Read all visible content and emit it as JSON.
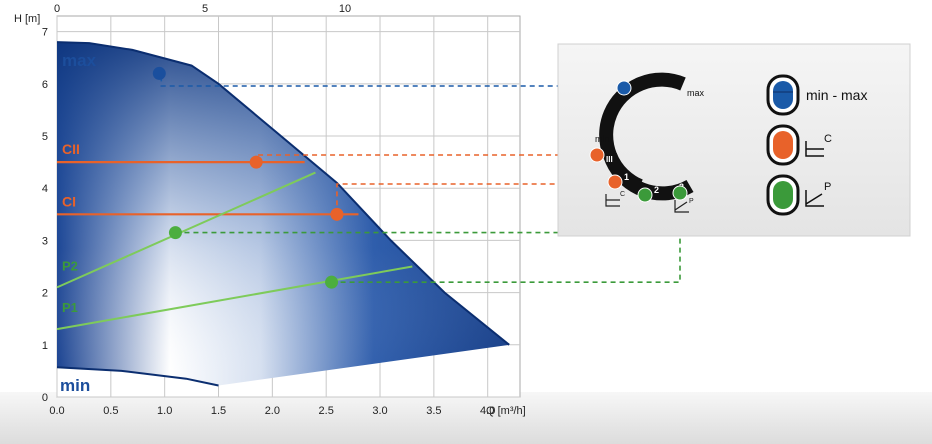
{
  "chart_data": {
    "type": "line",
    "xlabel": "Q [m³/h]",
    "ylabel": "H [m]",
    "xlim": [
      0,
      4.3
    ],
    "ylim": [
      0,
      7.3
    ],
    "x_ticks": [
      "0.0",
      "0.5",
      "1.0",
      "1.5",
      "2.0",
      "2.5",
      "3.0",
      "3.5",
      "4.0"
    ],
    "y_ticks": [
      "0",
      "1",
      "2",
      "3",
      "4",
      "5",
      "6",
      "7"
    ],
    "top_axis_label_ticks": [
      "0",
      "5",
      "10"
    ],
    "max_curve": {
      "name": "max",
      "points": [
        [
          0,
          6.8
        ],
        [
          0.3,
          6.78
        ],
        [
          0.7,
          6.65
        ],
        [
          1.25,
          6.35
        ],
        [
          1.5,
          6.0
        ],
        [
          2.6,
          4.1
        ],
        [
          3.1,
          3.0
        ],
        [
          3.6,
          2.0
        ],
        [
          4.2,
          1.0
        ]
      ],
      "color": "#0d3a86"
    },
    "min_curve": {
      "name": "min",
      "points": [
        [
          0,
          0.57
        ],
        [
          0.6,
          0.5
        ],
        [
          1.2,
          0.35
        ],
        [
          1.5,
          0.22
        ],
        [
          4.2,
          1.0
        ]
      ],
      "color": "#0d3a86"
    },
    "constant_pressure_lines": [
      {
        "name": "CII",
        "y": 4.5,
        "x_end": 2.3,
        "point_x": 1.85,
        "color": "#e8622a"
      },
      {
        "name": "CI",
        "y": 3.5,
        "x_end": 2.8,
        "point_x": 2.6,
        "color": "#e8622a"
      }
    ],
    "proportional_pressure_lines": [
      {
        "name": "P2",
        "x": [
          0,
          2.4
        ],
        "y": [
          2.1,
          4.3
        ],
        "point": [
          1.1,
          3.15
        ],
        "color": "#7ecb5a"
      },
      {
        "name": "P1",
        "x": [
          0,
          3.3
        ],
        "y": [
          1.3,
          2.5
        ],
        "point": [
          2.55,
          2.2
        ],
        "color": "#7ecb5a"
      }
    ],
    "max_point": [
      0.95,
      6.2
    ],
    "grid": true
  },
  "dial": {
    "label_min": "min",
    "label_max": "max",
    "segments": [
      "III",
      "1",
      "2",
      "3"
    ]
  },
  "legend": {
    "items": [
      {
        "key": "min-max",
        "label": "min - max",
        "color": "#1a5aa8"
      },
      {
        "key": "constant",
        "label": "C",
        "color": "#e8622a"
      },
      {
        "key": "proportional",
        "label": "P",
        "color": "#3b9a3a"
      }
    ]
  }
}
